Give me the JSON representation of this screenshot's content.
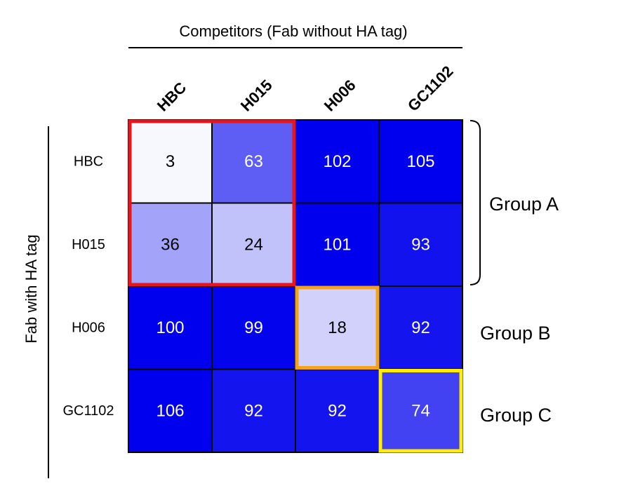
{
  "chart_data": {
    "type": "heatmap",
    "title": "Competitors (Fab without HA tag)",
    "ylabel": "Fab with HA tag",
    "columns": [
      "HBC",
      "H015",
      "H006",
      "GC1102"
    ],
    "rows": [
      "HBC",
      "H015",
      "H006",
      "GC1102"
    ],
    "values": [
      [
        3,
        63,
        102,
        105
      ],
      [
        36,
        24,
        101,
        93
      ],
      [
        100,
        99,
        18,
        92
      ],
      [
        106,
        92,
        92,
        74
      ]
    ],
    "color_scale": {
      "low": "#ffffff",
      "high": "#0000ee",
      "min": 0,
      "max": 100
    },
    "groups": [
      {
        "label": "Group A",
        "rows": [
          0,
          1
        ],
        "cols": [
          0,
          1
        ],
        "color": "#e8161c"
      },
      {
        "label": "Group B",
        "rows": [
          2,
          2
        ],
        "cols": [
          2,
          2
        ],
        "color": "#f2a21b"
      },
      {
        "label": "Group C",
        "rows": [
          3,
          3
        ],
        "cols": [
          3,
          3
        ],
        "color": "#ffee00"
      }
    ]
  }
}
